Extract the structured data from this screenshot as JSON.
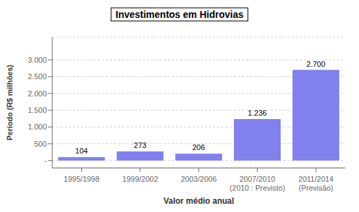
{
  "chart_data": {
    "type": "bar",
    "title": "Investimentos em Hidrovias",
    "categories": [
      "1995/1998",
      "1999/2002",
      "2003/2006",
      "2007/2010\n(2010 : Previsto)",
      "2011/2014\n(Previsão)"
    ],
    "values": [
      104,
      273,
      206,
      1236,
      2700
    ],
    "value_labels": [
      "104",
      "273",
      "206",
      "1.236",
      "2.700"
    ],
    "data_labels": true,
    "color": "#8080ee",
    "xlabel": "Valor médio anual",
    "ylabel": "Período (R$ milhões)",
    "ylim": [
      -220.5,
      3675
    ],
    "yticks": [
      {
        "value": 0,
        "label": "-"
      },
      500,
      {
        "value": 1000,
        "label": "1.000"
      },
      {
        "value": 1500,
        "label": "1.500"
      },
      {
        "value": 2000,
        "label": "2.000"
      },
      {
        "value": 2500,
        "label": "2.500"
      },
      {
        "value": 3000,
        "label": "3.000"
      }
    ],
    "grid": true
  }
}
